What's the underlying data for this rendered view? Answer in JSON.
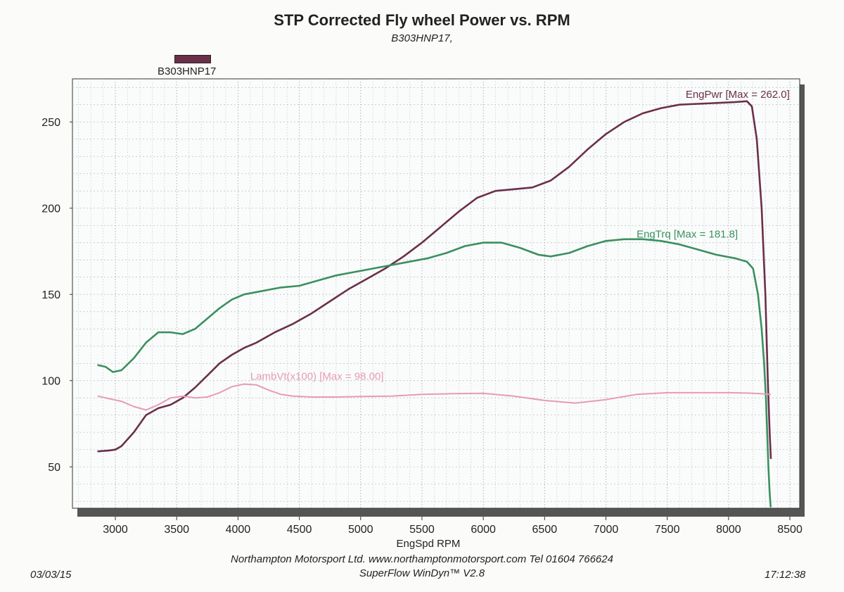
{
  "header": {
    "title": "STP Corrected Fly wheel Power vs. RPM",
    "subtitle": "B303HNP17,"
  },
  "legend": {
    "label": "B303HNP17",
    "color": "#6b2f4a"
  },
  "footer": {
    "line1": "Northampton Motorsport Ltd. www.northamptonmotorsport.com Tel 01604 766624",
    "line2": "SuperFlow WinDyn™ V2.8",
    "date": "03/03/15",
    "time": "17:12:38"
  },
  "chart_data": {
    "type": "line",
    "xlabel": "EngSpd  RPM",
    "ylabel": "",
    "xlim": [
      2650,
      8580
    ],
    "ylim": [
      26,
      275
    ],
    "xticks": [
      3000,
      3500,
      4000,
      4500,
      5000,
      5500,
      6000,
      6500,
      7000,
      7500,
      8000,
      8500
    ],
    "yticks": [
      50,
      100,
      150,
      200,
      250
    ],
    "grid": true,
    "series": [
      {
        "name": "EngPwr [Max = 262.0]",
        "color": "#6b2f4a",
        "label_at": [
          7650,
          264
        ],
        "x": [
          2860,
          2950,
          3000,
          3050,
          3150,
          3250,
          3350,
          3450,
          3550,
          3650,
          3750,
          3850,
          3950,
          4050,
          4150,
          4300,
          4450,
          4600,
          4750,
          4900,
          5050,
          5200,
          5350,
          5500,
          5650,
          5800,
          5950,
          6100,
          6250,
          6400,
          6550,
          6700,
          6850,
          7000,
          7150,
          7300,
          7450,
          7600,
          7750,
          7900,
          8050,
          8150,
          8190,
          8230,
          8270,
          8300,
          8320,
          8335,
          8345
        ],
        "y": [
          59,
          59.5,
          60,
          62,
          70,
          80,
          84,
          86,
          90,
          96,
          103,
          110,
          115,
          119,
          122,
          128,
          133,
          139,
          146,
          153,
          159,
          165,
          172,
          180,
          189,
          198,
          206,
          210,
          211,
          212,
          216,
          224,
          234,
          243,
          250,
          255,
          258,
          260,
          260.5,
          261,
          261.5,
          262,
          259,
          240,
          200,
          150,
          100,
          70,
          55
        ]
      },
      {
        "name": "EngTrq [Max = 181.8]",
        "color": "#3a9060",
        "label_at": [
          7250,
          183
        ],
        "x": [
          2860,
          2920,
          2980,
          3050,
          3150,
          3250,
          3350,
          3450,
          3550,
          3650,
          3750,
          3850,
          3950,
          4050,
          4200,
          4350,
          4500,
          4650,
          4800,
          4950,
          5100,
          5250,
          5400,
          5550,
          5700,
          5850,
          6000,
          6150,
          6300,
          6450,
          6550,
          6700,
          6850,
          7000,
          7150,
          7300,
          7450,
          7600,
          7750,
          7900,
          8050,
          8150,
          8200,
          8240,
          8270,
          8290,
          8305,
          8315,
          8325,
          8335,
          8343
        ],
        "y": [
          109,
          108,
          105,
          106,
          113,
          122,
          128,
          128,
          127,
          130,
          136,
          142,
          147,
          150,
          152,
          154,
          155,
          158,
          161,
          163,
          165,
          167,
          169,
          171,
          174,
          178,
          180,
          180,
          177,
          173,
          172,
          174,
          178,
          181,
          182,
          182,
          181,
          179,
          176,
          173,
          171,
          169,
          165,
          150,
          130,
          110,
          90,
          70,
          50,
          35,
          27
        ]
      },
      {
        "name": "LambVt(x100) [Max = 98.00]",
        "color": "#e89ab8",
        "label_at": [
          4100,
          100.5
        ],
        "x": [
          2860,
          2950,
          3050,
          3150,
          3250,
          3350,
          3450,
          3550,
          3650,
          3750,
          3850,
          3950,
          4050,
          4150,
          4250,
          4350,
          4450,
          4600,
          4800,
          5000,
          5250,
          5500,
          5750,
          6000,
          6250,
          6500,
          6750,
          7000,
          7250,
          7500,
          7750,
          8000,
          8150,
          8250,
          8340
        ],
        "y": [
          91,
          89.5,
          88,
          85,
          83,
          86,
          90,
          91,
          90,
          90.5,
          93,
          96.5,
          98,
          97.5,
          94.5,
          92,
          91,
          90.5,
          90.5,
          90.8,
          91,
          92,
          92.4,
          92.6,
          91,
          88.5,
          87,
          89,
          92,
          93,
          93,
          93,
          92.8,
          92.5,
          92
        ]
      }
    ]
  }
}
